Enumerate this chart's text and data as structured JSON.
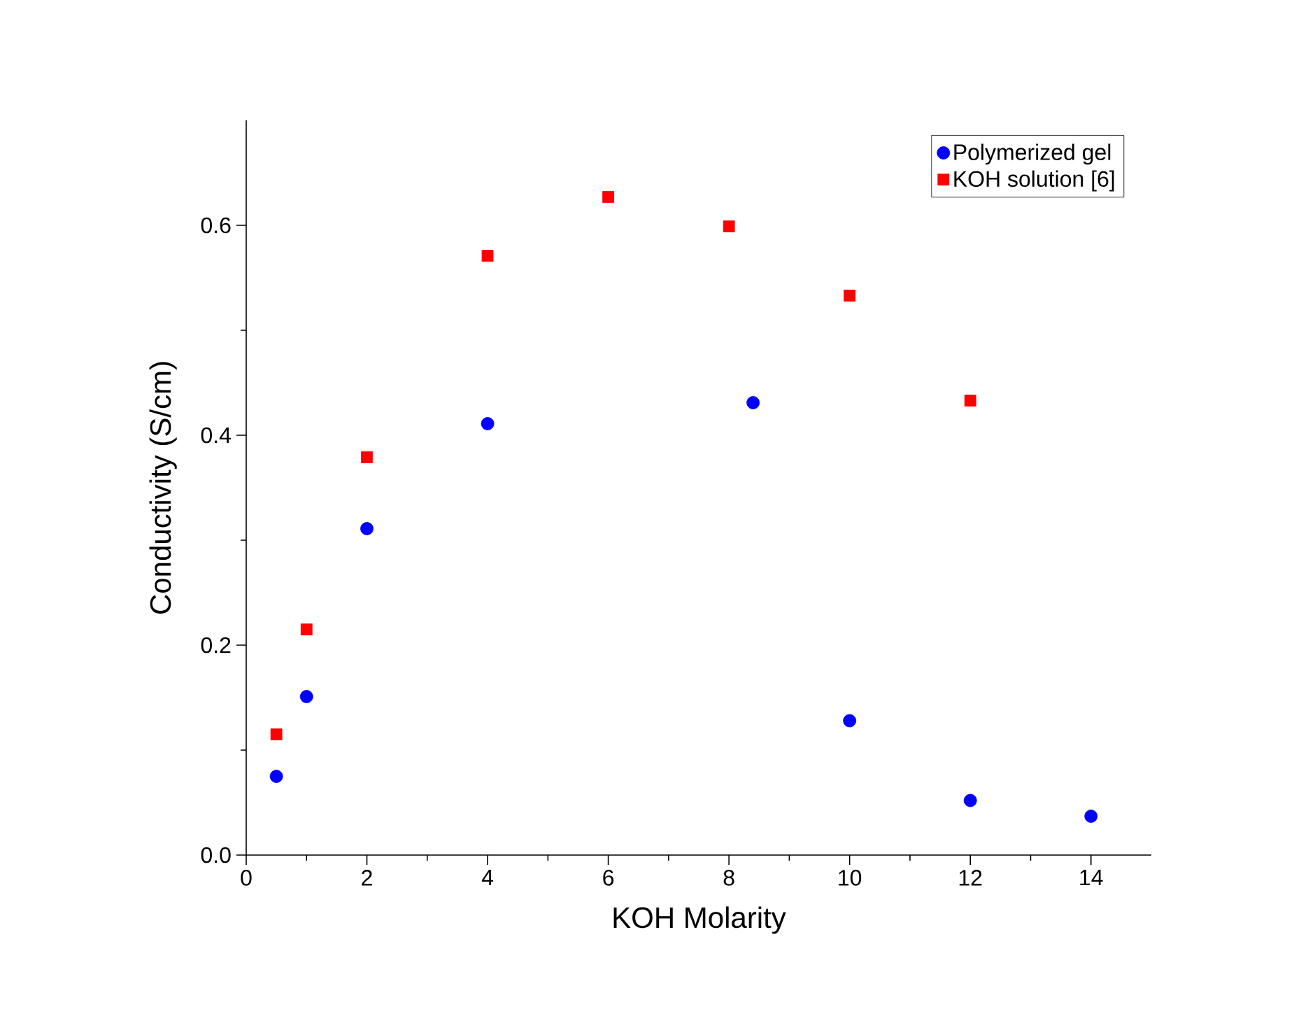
{
  "chart_data": {
    "type": "scatter",
    "xlabel": "KOH Molarity",
    "ylabel": "Conductivity (S/cm)",
    "xlim": [
      0,
      15
    ],
    "ylim": [
      0,
      0.7
    ],
    "xticks": [
      0,
      2,
      4,
      6,
      8,
      10,
      12,
      14
    ],
    "yticks": [
      {
        "value": 0,
        "label": "0.0"
      },
      {
        "value": 0.2,
        "label": "0.2"
      },
      {
        "value": 0.4,
        "label": "0.4"
      },
      {
        "value": 0.6,
        "label": "0.6"
      }
    ],
    "grid": false,
    "legend": "top right",
    "series": [
      {
        "name": "Polymerized gel",
        "color": "#0000ff",
        "marker": "circle",
        "x": [
          0.5,
          1,
          2,
          4,
          8.4,
          10,
          12,
          14
        ],
        "values": [
          0.075,
          0.151,
          0.311,
          0.411,
          0.431,
          0.128,
          0.052,
          0.037
        ]
      },
      {
        "name": "KOH solution [6]",
        "color": "#ff0000",
        "marker": "square",
        "x": [
          0.5,
          1,
          2,
          4,
          6,
          8,
          10,
          12
        ],
        "values": [
          0.115,
          0.215,
          0.379,
          0.571,
          0.627,
          0.599,
          0.533,
          0.433
        ]
      }
    ]
  }
}
